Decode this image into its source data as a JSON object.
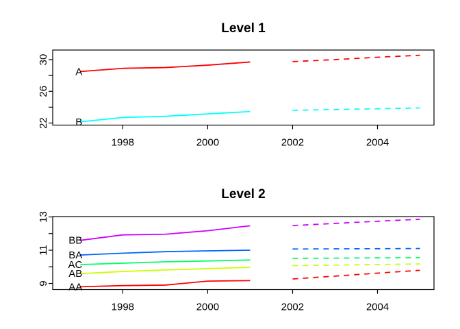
{
  "figure": {
    "background": "#ffffff",
    "panels": 2
  },
  "chart_data": [
    {
      "type": "line",
      "title": "Level 1",
      "x_historical": [
        1997,
        1998,
        1999,
        2000,
        2001
      ],
      "x_forecast": [
        2002,
        2003,
        2004,
        2005
      ],
      "historical_style": "solid",
      "forecast_style": "dashed",
      "xticks": [
        1998,
        2000,
        2002,
        2004
      ],
      "yticks": [
        22,
        24,
        26,
        28,
        30
      ],
      "ytick_labels": [
        22,
        26,
        30
      ],
      "xlim": [
        1996.35,
        2005.33
      ],
      "ylim": [
        21.74,
        31.21
      ],
      "grid": false,
      "legend": "inline-labels-at-line-start",
      "series": [
        {
          "name": "A",
          "color": "#FF0000",
          "historical": [
            28.5,
            28.9,
            29.0,
            29.3,
            29.7
          ],
          "forecast": [
            29.75,
            30.0,
            30.3,
            30.55
          ]
        },
        {
          "name": "B",
          "color": "#00FFFF",
          "historical": [
            22.15,
            22.7,
            22.85,
            23.15,
            23.45
          ],
          "forecast": [
            23.6,
            23.7,
            23.8,
            23.9
          ]
        }
      ]
    },
    {
      "type": "line",
      "title": "Level 2",
      "x_historical": [
        1997,
        1998,
        1999,
        2000,
        2001
      ],
      "x_forecast": [
        2002,
        2003,
        2004,
        2005
      ],
      "historical_style": "solid",
      "forecast_style": "dashed",
      "xticks": [
        1998,
        2000,
        2002,
        2004
      ],
      "yticks": [
        9,
        10,
        11,
        12,
        13
      ],
      "ytick_labels": [
        9,
        11,
        13
      ],
      "xlim": [
        1996.35,
        2005.33
      ],
      "ylim": [
        8.63,
        13.02
      ],
      "grid": false,
      "legend": "inline-labels-at-line-start",
      "series": [
        {
          "name": "BB",
          "color": "#CC00FF",
          "historical": [
            11.59,
            11.92,
            11.96,
            12.17,
            12.47
          ],
          "forecast": [
            12.48,
            12.61,
            12.74,
            12.86
          ]
        },
        {
          "name": "BA",
          "color": "#0066FF",
          "historical": [
            10.71,
            10.82,
            10.91,
            10.96,
            11.0
          ],
          "forecast": [
            11.07,
            11.08,
            11.09,
            11.1
          ]
        },
        {
          "name": "AC",
          "color": "#00FF66",
          "historical": [
            10.13,
            10.22,
            10.3,
            10.35,
            10.41
          ],
          "forecast": [
            10.51,
            10.52,
            10.54,
            10.55
          ]
        },
        {
          "name": "AB",
          "color": "#CCFF00",
          "historical": [
            9.59,
            9.72,
            9.81,
            9.89,
            9.97
          ],
          "forecast": [
            10.07,
            10.1,
            10.14,
            10.17
          ]
        },
        {
          "name": "AA",
          "color": "#FF0000",
          "historical": [
            8.8,
            8.87,
            8.9,
            9.14,
            9.17
          ],
          "forecast": [
            9.27,
            9.44,
            9.62,
            9.79
          ]
        }
      ]
    }
  ],
  "axis_color": "#000000",
  "text_color": "#000000"
}
